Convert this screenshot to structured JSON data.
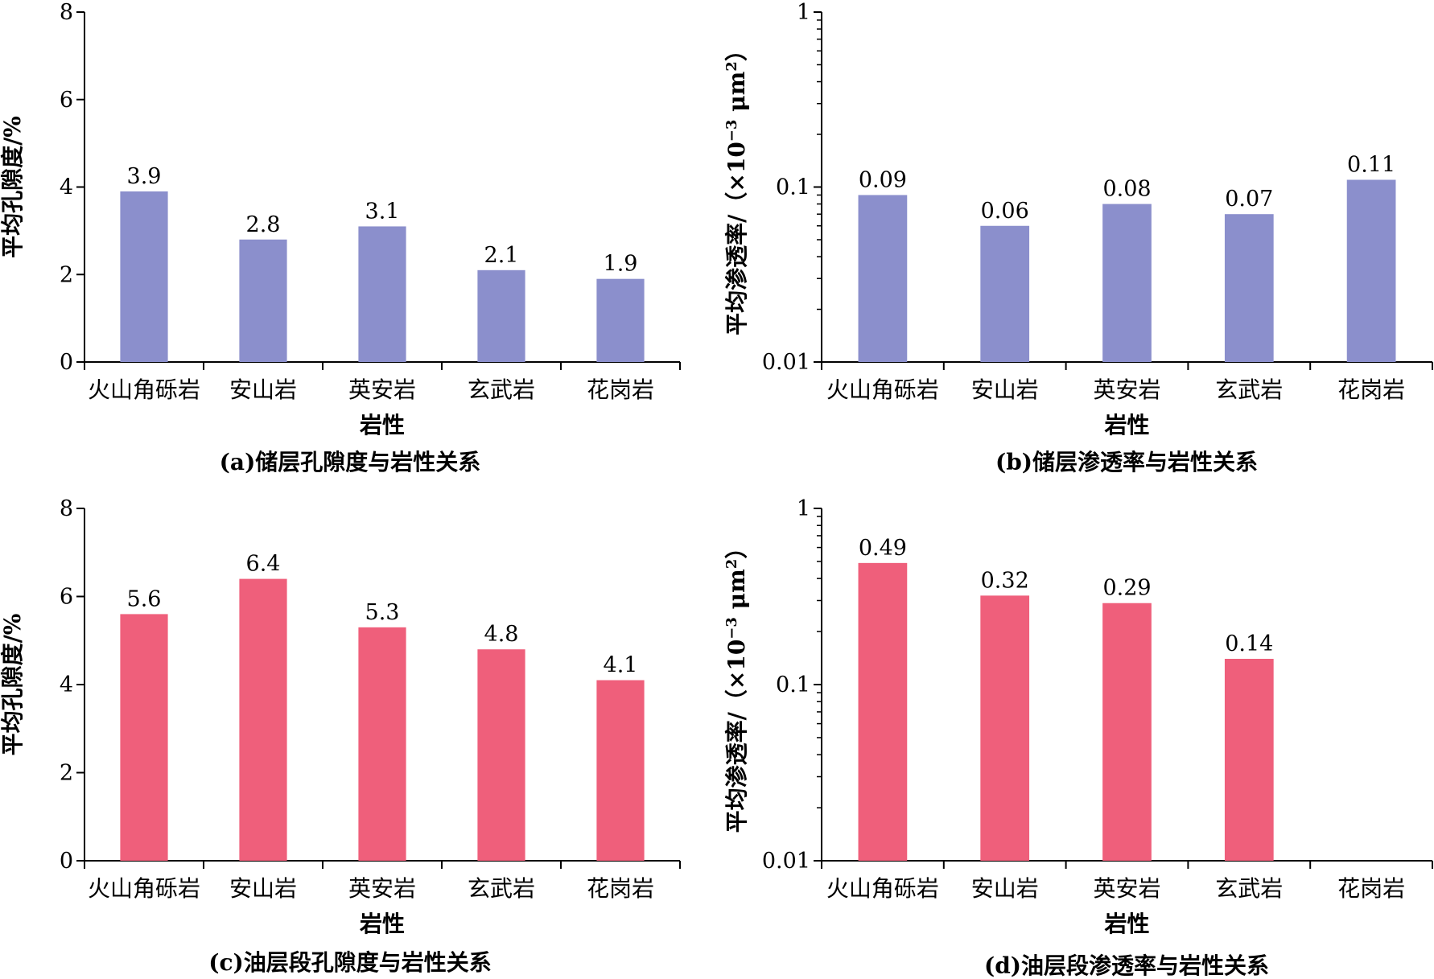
{
  "chart_data": [
    {
      "id": "a",
      "type": "bar",
      "caption": "(a)储层孔隙度与岩性关系",
      "xlabel": "岩性",
      "ylabel": "平均孔隙度/%",
      "categories": [
        "火山角砾岩",
        "安山岩",
        "英安岩",
        "玄武岩",
        "花岗岩"
      ],
      "values": [
        3.9,
        2.8,
        3.1,
        2.1,
        1.9
      ],
      "value_labels": [
        "3.9",
        "2.8",
        "3.1",
        "2.1",
        "1.9"
      ],
      "scale": "linear",
      "ylim": [
        0,
        8
      ],
      "yticks": [
        0,
        2,
        4,
        6,
        8
      ],
      "ytick_labels": [
        "0",
        "2",
        "4",
        "6",
        "8"
      ],
      "bar_color": "#8b8fcc",
      "grid": false
    },
    {
      "id": "b",
      "type": "bar",
      "caption": "(b)储层渗透率与岩性关系",
      "xlabel": "岩性",
      "ylabel_main": "平均渗透率/（×10",
      "ylabel_sup": "−3",
      "ylabel_unit": " μm",
      "ylabel_sup2": "2",
      "ylabel_end": "）",
      "categories": [
        "火山角砾岩",
        "安山岩",
        "英安岩",
        "玄武岩",
        "花岗岩"
      ],
      "values": [
        0.09,
        0.06,
        0.08,
        0.07,
        0.11
      ],
      "value_labels": [
        "0.09",
        "0.06",
        "0.08",
        "0.07",
        "0.11"
      ],
      "scale": "log",
      "ylim": [
        0.01,
        1
      ],
      "yticks": [
        0.01,
        0.1,
        1
      ],
      "ytick_labels": [
        "0.01",
        "0.1",
        "1"
      ],
      "bar_color": "#8b8fcc",
      "grid": false
    },
    {
      "id": "c",
      "type": "bar",
      "caption": "(c)油层段孔隙度与岩性关系",
      "xlabel": "岩性",
      "ylabel": "平均孔隙度/%",
      "categories": [
        "火山角砾岩",
        "安山岩",
        "英安岩",
        "玄武岩",
        "花岗岩"
      ],
      "values": [
        5.6,
        6.4,
        5.3,
        4.8,
        4.1
      ],
      "value_labels": [
        "5.6",
        "6.4",
        "5.3",
        "4.8",
        "4.1"
      ],
      "scale": "linear",
      "ylim": [
        0,
        8
      ],
      "yticks": [
        0,
        2,
        4,
        6,
        8
      ],
      "ytick_labels": [
        "0",
        "2",
        "4",
        "6",
        "8"
      ],
      "bar_color": "#ef5f7b",
      "grid": false
    },
    {
      "id": "d",
      "type": "bar",
      "caption": "(d)油层段渗透率与岩性关系",
      "xlabel": "岩性",
      "ylabel_main": "平均渗透率/（×10",
      "ylabel_sup": "−3",
      "ylabel_unit": " μm",
      "ylabel_sup2": "2",
      "ylabel_end": "）",
      "categories": [
        "火山角砾岩",
        "安山岩",
        "英安岩",
        "玄武岩",
        "花岗岩"
      ],
      "values": [
        0.49,
        0.32,
        0.29,
        0.14,
        null
      ],
      "value_labels": [
        "0.49",
        "0.32",
        "0.29",
        "0.14",
        ""
      ],
      "scale": "log",
      "ylim": [
        0.01,
        1
      ],
      "yticks": [
        0.01,
        0.1,
        1
      ],
      "ytick_labels": [
        "0.01",
        "0.1",
        "1"
      ],
      "bar_color": "#ef5f7b",
      "grid": false
    }
  ]
}
